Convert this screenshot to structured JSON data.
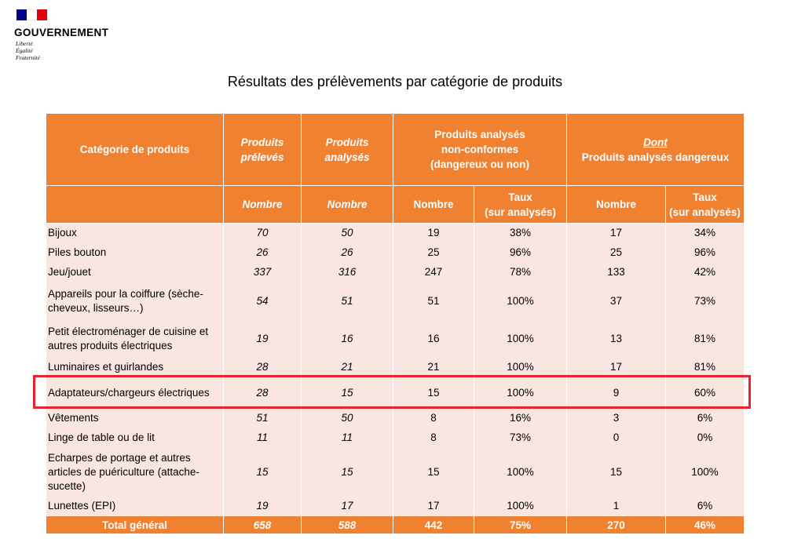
{
  "logo": {
    "name": "GOUVERNEMENT",
    "motto": [
      "Liberté",
      "Égalité",
      "Fraternité"
    ]
  },
  "title": "Résultats des prélèvements par catégorie de produits",
  "header": {
    "category": "Catégorie de produits",
    "sampled": "Produits prélevés",
    "analysed": "Produits analysés",
    "nonconform": [
      "Produits analysés",
      "non-conformes",
      "(dangereux ou non)"
    ],
    "dont": "Dont",
    "dangerous": "Produits analysés dangereux",
    "nombre": "Nombre",
    "taux": [
      "Taux",
      "(sur analysés)"
    ]
  },
  "rows": [
    {
      "cat": "Bijoux",
      "sampled": "70",
      "analysed": "50",
      "nc_n": "19",
      "nc_t": "38%",
      "d_n": "17",
      "d_t": "34%"
    },
    {
      "cat": "Piles bouton",
      "sampled": "26",
      "analysed": "26",
      "nc_n": "25",
      "nc_t": "96%",
      "d_n": "25",
      "d_t": "96%"
    },
    {
      "cat": "Jeu/jouet",
      "sampled": "337",
      "analysed": "316",
      "nc_n": "247",
      "nc_t": "78%",
      "d_n": "133",
      "d_t": "42%"
    },
    {
      "cat": "Appareils pour la coiffure (sèche-cheveux, lisseurs…)",
      "sampled": "54",
      "analysed": "51",
      "nc_n": "51",
      "nc_t": "100%",
      "d_n": "37",
      "d_t": "73%"
    },
    {
      "cat": "Petit électroménager de cuisine et autres produits électriques",
      "sampled": "19",
      "analysed": "16",
      "nc_n": "16",
      "nc_t": "100%",
      "d_n": "13",
      "d_t": "81%"
    },
    {
      "cat": "Luminaires et guirlandes",
      "sampled": "28",
      "analysed": "21",
      "nc_n": "21",
      "nc_t": "100%",
      "d_n": "17",
      "d_t": "81%"
    },
    {
      "cat": "Adaptateurs/chargeurs électriques",
      "sampled": "28",
      "analysed": "15",
      "nc_n": "15",
      "nc_t": "100%",
      "d_n": "9",
      "d_t": "60%"
    },
    {
      "cat": "Vêtements",
      "sampled": "51",
      "analysed": "50",
      "nc_n": "8",
      "nc_t": "16%",
      "d_n": "3",
      "d_t": "6%"
    },
    {
      "cat": "Linge de table ou de lit",
      "sampled": "11",
      "analysed": "11",
      "nc_n": "8",
      "nc_t": "73%",
      "d_n": "0",
      "d_t": "0%"
    },
    {
      "cat": "Echarpes de portage et autres articles de puériculture (attache-sucette)",
      "sampled": "15",
      "analysed": "15",
      "nc_n": "15",
      "nc_t": "100%",
      "d_n": "15",
      "d_t": "100%"
    },
    {
      "cat": "Lunettes (EPI)",
      "sampled": "19",
      "analysed": "17",
      "nc_n": "17",
      "nc_t": "100%",
      "d_n": "1",
      "d_t": "6%"
    }
  ],
  "total": {
    "cat": "Total général",
    "sampled": "658",
    "analysed": "588",
    "nc_n": "442",
    "nc_t": "75%",
    "d_n": "270",
    "d_t": "46%"
  },
  "colors": {
    "header": "#f08131",
    "row": "#f9e6e0",
    "highlight": "#e6252f"
  }
}
